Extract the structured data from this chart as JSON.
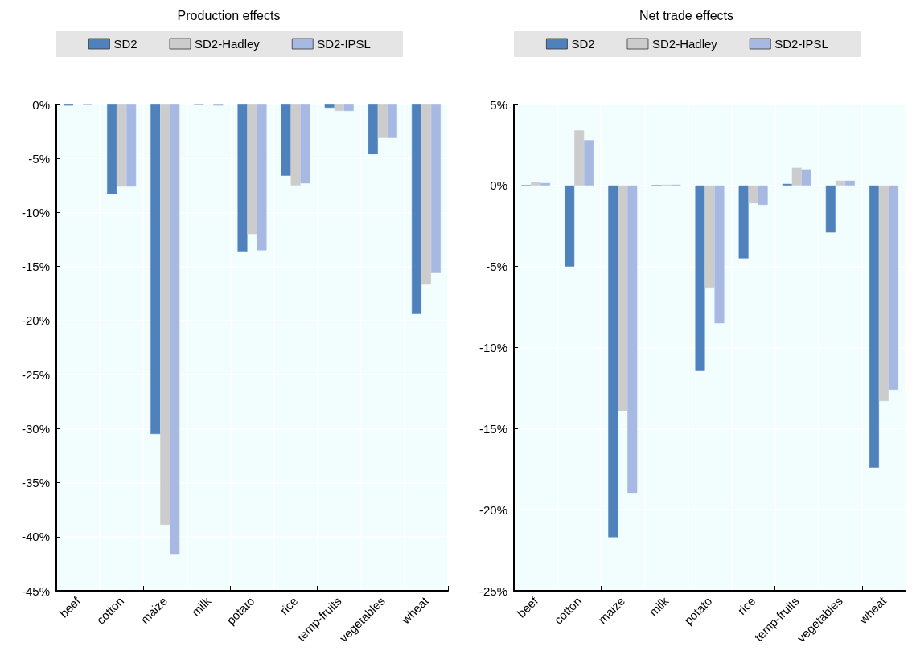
{
  "chart_data": [
    {
      "type": "bar",
      "title": "Production effects",
      "categories": [
        "beef",
        "cotton",
        "maize",
        "milk",
        "potato",
        "rice",
        "temp-fruits",
        "vegetables",
        "wheat"
      ],
      "series": [
        {
          "name": "SD2",
          "color": "#4f81bd",
          "values": [
            -0.1,
            -8.3,
            -30.5,
            0,
            -13.6,
            -6.6,
            -0.3,
            -4.6,
            -19.4
          ]
        },
        {
          "name": "SD2-Hadley",
          "color": "#cccccc",
          "values": [
            null,
            -7.6,
            -38.9,
            null,
            -12.0,
            -7.5,
            -0.6,
            -3.1,
            -16.6
          ]
        },
        {
          "name": "SD2-IPSL",
          "color": "#a7b9e3",
          "values": [
            -0.05,
            -7.6,
            -41.6,
            -0.1,
            -13.5,
            -7.3,
            -0.6,
            -3.1,
            -15.6
          ]
        }
      ],
      "ylim": [
        -45,
        0
      ],
      "yticks": [
        {
          "value": -45,
          "label": "-45%"
        },
        {
          "value": -40,
          "label": "-40%"
        },
        {
          "value": -35,
          "label": "-35%"
        },
        {
          "value": -30,
          "label": "-30%"
        },
        {
          "value": -25,
          "label": "-25%"
        },
        {
          "value": -20,
          "label": "-20%"
        },
        {
          "value": -15,
          "label": "-15%"
        },
        {
          "value": -10,
          "label": "-10%"
        },
        {
          "value": -5,
          "label": "-5%"
        },
        {
          "value": 0,
          "label": "0%"
        }
      ],
      "grid": true,
      "legend": "top"
    },
    {
      "type": "bar",
      "title": "Net trade effects",
      "categories": [
        "beef",
        "cotton",
        "maize",
        "milk",
        "potato",
        "rice",
        "temp-fruits",
        "vegetables",
        "wheat"
      ],
      "series": [
        {
          "name": "SD2",
          "color": "#4f81bd",
          "values": [
            0,
            -5.0,
            -21.7,
            0,
            -11.4,
            -4.5,
            0.1,
            -2.9,
            -17.4
          ]
        },
        {
          "name": "SD2-Hadley",
          "color": "#cccccc",
          "values": [
            0.2,
            3.4,
            -13.9,
            0.05,
            -6.3,
            -1.1,
            1.1,
            0.3,
            -13.3
          ]
        },
        {
          "name": "SD2-IPSL",
          "color": "#a7b9e3",
          "values": [
            0.15,
            2.8,
            -19.0,
            0.05,
            -8.5,
            -1.2,
            1.0,
            0.3,
            -12.6
          ]
        }
      ],
      "ylim": [
        -25,
        5
      ],
      "yticks": [
        {
          "value": -25,
          "label": "-25%"
        },
        {
          "value": -20,
          "label": "-20%"
        },
        {
          "value": -15,
          "label": "-15%"
        },
        {
          "value": -10,
          "label": "-10%"
        },
        {
          "value": -5,
          "label": "-5%"
        },
        {
          "value": 0,
          "label": "0%"
        },
        {
          "value": 5,
          "label": "5%"
        }
      ],
      "grid": true,
      "legend": "top"
    }
  ]
}
